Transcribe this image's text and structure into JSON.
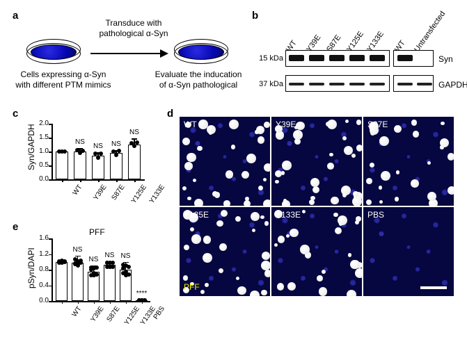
{
  "colors": {
    "page_bg": "#ffffff",
    "cell_blue": "#0b0bd0",
    "dapi_bg": "#060640",
    "puncta": "#ffffff",
    "band": "#111111",
    "axis": "#000000"
  },
  "typography": {
    "panel_letter_fontsize": 15,
    "caption_fontsize": 12,
    "lane_label_fontsize": 11,
    "lane_label_rotation_deg": -55,
    "tick_fontsize": 10,
    "axis_label_fontsize": 12
  },
  "panel_a": {
    "letter": "a",
    "arrow_label": "Transduce with\npathological α-Syn",
    "left_caption": "Cells expressing α-Syn\nwith different PTM mimics",
    "right_caption": "Evaluate the inducation\nof α-Syn pathological"
  },
  "panel_b": {
    "letter": "b",
    "lanes_group1": [
      "WT",
      "Y39E",
      "S87E",
      "Y125E",
      "Y133E"
    ],
    "lanes_group2": [
      "WT",
      "Untransfected"
    ],
    "size_markers": [
      "15 kDa",
      "37 kDa"
    ],
    "row_labels": [
      "Syn",
      "GAPDH"
    ]
  },
  "panel_c": {
    "letter": "c",
    "type": "bar",
    "ylabel": "Syn/GAPDH",
    "ylim": [
      0,
      2.0
    ],
    "ytick_step": 0.5,
    "categories": [
      "WT",
      "Y39E",
      "S87E",
      "Y125E",
      "Y133E"
    ],
    "values": [
      1.0,
      1.0,
      0.85,
      0.95,
      1.25
    ],
    "errors": [
      0.05,
      0.12,
      0.12,
      0.1,
      0.22
    ],
    "significance": [
      "",
      "NS",
      "NS",
      "NS",
      "NS"
    ],
    "n_points": 3,
    "bar_color": "#ffffff",
    "bar_border": "#000000"
  },
  "panel_d": {
    "letter": "d",
    "grid": {
      "rows": 2,
      "cols": 3
    },
    "tiles": [
      {
        "label": "WT",
        "puncta_count": 30
      },
      {
        "label": "Y39E",
        "puncta_count": 32
      },
      {
        "label": "S87E",
        "puncta_count": 24
      },
      {
        "label": "Y125E",
        "puncta_count": 28
      },
      {
        "label": "Y133E",
        "puncta_count": 26
      },
      {
        "label": "PBS",
        "puncta_count": 0
      }
    ],
    "corner_label": "PFF",
    "corner_label_color": "#f1f100",
    "scalebar_tile_index": 5
  },
  "panel_e": {
    "letter": "e",
    "type": "bar",
    "title": "PFF",
    "ylabel": "pSyn/DAPI",
    "ylim": [
      0,
      1.6
    ],
    "ytick_step": 0.4,
    "categories": [
      "WT",
      "Y39E",
      "S87E",
      "Y125E",
      "Y133E",
      "PBS"
    ],
    "values": [
      1.0,
      0.98,
      0.75,
      0.93,
      0.8,
      0.02
    ],
    "errors": [
      0.04,
      0.18,
      0.15,
      0.08,
      0.2,
      0.01
    ],
    "significance": [
      "",
      "NS",
      "NS",
      "NS",
      "NS",
      "****"
    ],
    "n_points": 8,
    "bar_color": "#ffffff",
    "bar_border": "#000000"
  }
}
